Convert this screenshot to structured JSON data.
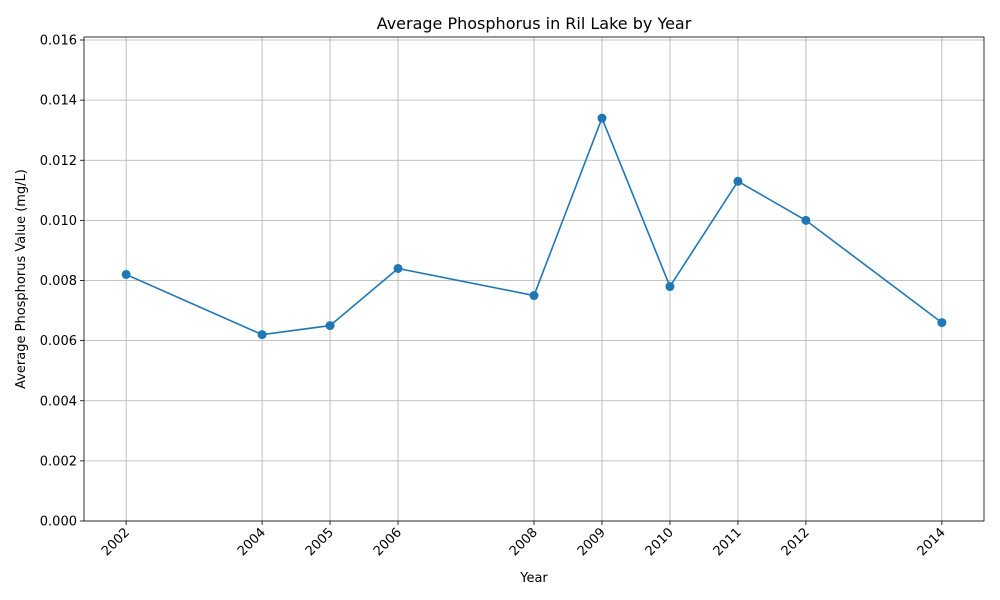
{
  "chart_data": {
    "type": "line",
    "title": "Average Phosphorus in Ril Lake by Year",
    "xlabel": "Year",
    "ylabel": "Average Phosphorus Value (mg/L)",
    "x": [
      2002,
      2004,
      2005,
      2006,
      2008,
      2009,
      2010,
      2011,
      2012,
      2014
    ],
    "x_tick_labels": [
      "2002",
      "2004",
      "2005",
      "2006",
      "2008",
      "2009",
      "2010",
      "2011",
      "2012",
      "2014"
    ],
    "series": [
      {
        "values": [
          0.0082,
          0.0062,
          0.0065,
          0.0084,
          0.0075,
          0.0134,
          0.0078,
          0.0113,
          0.01,
          0.0066
        ]
      }
    ],
    "y_ticks": [
      0,
      0.002,
      0.004,
      0.006,
      0.008,
      0.01,
      0.012,
      0.014,
      0.016
    ],
    "y_tick_labels": [
      "0.000",
      "0.002",
      "0.004",
      "0.006",
      "0.008",
      "0.010",
      "0.012",
      "0.014",
      "0.016"
    ],
    "xlim": [
      2001.38,
      2014.62
    ],
    "ylim": [
      0,
      0.0161
    ],
    "grid": true,
    "line_color": "#1f77b4",
    "markers": true
  }
}
